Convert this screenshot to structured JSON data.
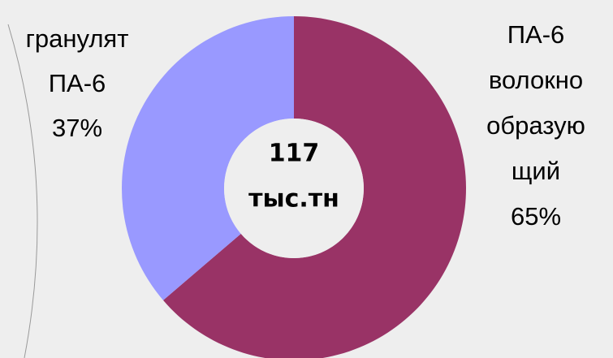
{
  "chart_data": {
    "type": "donut",
    "categories": [
      "ПА-6 волокно образую щий",
      "гранулят ПА-6"
    ],
    "values": [
      65,
      37
    ],
    "value_labels": [
      "65%",
      "37%"
    ],
    "colors": [
      "#993366",
      "#9999ff"
    ],
    "center_label": [
      "117",
      "тыс.тн"
    ]
  }
}
